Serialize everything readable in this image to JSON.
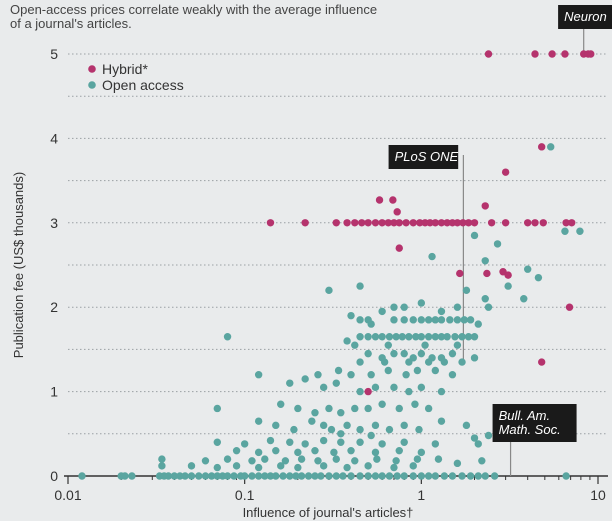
{
  "chart_data": {
    "type": "scatter",
    "title": "Open-access prices correlate weakly with the average influence of a journal's articles.",
    "xlabel": "Influence of journal's articles†",
    "ylabel": "Publication fee (US$ thousands)",
    "x_scale": "log",
    "xlim": [
      0.01,
      10
    ],
    "ylim": [
      0,
      5
    ],
    "x_ticks": [
      {
        "value": 0.01,
        "label": "0.01"
      },
      {
        "value": 0.1,
        "label": "0.1"
      },
      {
        "value": 1,
        "label": "1"
      },
      {
        "value": 10,
        "label": "10"
      }
    ],
    "y_ticks": [
      {
        "value": 0,
        "label": "0"
      },
      {
        "value": 1,
        "label": "1"
      },
      {
        "value": 2,
        "label": "2"
      },
      {
        "value": 3,
        "label": "3"
      },
      {
        "value": 4,
        "label": "4"
      },
      {
        "value": 5,
        "label": "5"
      }
    ],
    "grid": "dotted horizontal lines at every 0.5",
    "legend_position": "top-left",
    "series": [
      {
        "name": "Hybrid*",
        "color": "#b5336d",
        "points": [
          [
            2.4,
            5.0
          ],
          [
            4.4,
            5.0
          ],
          [
            5.5,
            5.0
          ],
          [
            6.5,
            5.0
          ],
          [
            8.3,
            5.0
          ],
          [
            8.8,
            5.0
          ],
          [
            9.1,
            5.0
          ],
          [
            4.8,
            3.9
          ],
          [
            3.0,
            3.6
          ],
          [
            0.14,
            3.0
          ],
          [
            0.22,
            3.0
          ],
          [
            0.33,
            3.0
          ],
          [
            0.38,
            3.0
          ],
          [
            0.42,
            3.0
          ],
          [
            0.46,
            3.0
          ],
          [
            0.5,
            3.0
          ],
          [
            0.55,
            3.0
          ],
          [
            0.6,
            3.0
          ],
          [
            0.65,
            3.0
          ],
          [
            0.7,
            3.0
          ],
          [
            0.75,
            3.0
          ],
          [
            0.82,
            3.0
          ],
          [
            0.9,
            3.0
          ],
          [
            0.98,
            3.0
          ],
          [
            1.05,
            3.0
          ],
          [
            1.12,
            3.0
          ],
          [
            1.2,
            3.0
          ],
          [
            1.3,
            3.0
          ],
          [
            1.4,
            3.0
          ],
          [
            1.5,
            3.0
          ],
          [
            1.6,
            3.0
          ],
          [
            1.72,
            3.0
          ],
          [
            1.85,
            3.0
          ],
          [
            2.0,
            3.0
          ],
          [
            2.5,
            3.0
          ],
          [
            3.0,
            3.0
          ],
          [
            4.0,
            3.0
          ],
          [
            4.4,
            3.0
          ],
          [
            4.9,
            3.0
          ],
          [
            6.6,
            3.0
          ],
          [
            7.1,
            3.0
          ],
          [
            0.58,
            3.27
          ],
          [
            0.69,
            3.27
          ],
          [
            0.73,
            3.13
          ],
          [
            2.3,
            3.2
          ],
          [
            0.75,
            2.7
          ],
          [
            1.65,
            2.4
          ],
          [
            2.35,
            2.4
          ],
          [
            2.9,
            2.42
          ],
          [
            3.1,
            2.38
          ],
          [
            6.9,
            2.0
          ],
          [
            4.8,
            1.35
          ],
          [
            0.5,
            1.0
          ]
        ]
      },
      {
        "name": "Open access",
        "color": "#5aa5a0",
        "points": [
          [
            5.4,
            3.9
          ],
          [
            6.5,
            2.9
          ],
          [
            7.9,
            2.9
          ],
          [
            2.0,
            2.85
          ],
          [
            2.7,
            2.75
          ],
          [
            2.3,
            2.55
          ],
          [
            1.15,
            2.6
          ],
          [
            4.0,
            2.45
          ],
          [
            4.6,
            2.35
          ],
          [
            3.1,
            2.25
          ],
          [
            1.8,
            2.2
          ],
          [
            2.3,
            2.1
          ],
          [
            3.8,
            2.1
          ],
          [
            0.3,
            2.2
          ],
          [
            0.45,
            2.25
          ],
          [
            0.8,
            2.0
          ],
          [
            1.0,
            2.05
          ],
          [
            1.3,
            1.95
          ],
          [
            1.6,
            2.0
          ],
          [
            2.4,
            2.0
          ],
          [
            0.6,
            1.95
          ],
          [
            0.7,
            2.0
          ],
          [
            0.4,
            1.9
          ],
          [
            0.45,
            1.85
          ],
          [
            0.5,
            1.85
          ],
          [
            0.52,
            1.8
          ],
          [
            0.7,
            1.85
          ],
          [
            0.8,
            1.85
          ],
          [
            0.9,
            1.85
          ],
          [
            1.0,
            1.85
          ],
          [
            1.1,
            1.85
          ],
          [
            1.2,
            1.85
          ],
          [
            1.3,
            1.85
          ],
          [
            1.45,
            1.85
          ],
          [
            1.6,
            1.85
          ],
          [
            1.75,
            1.85
          ],
          [
            1.9,
            1.85
          ],
          [
            2.1,
            1.8
          ],
          [
            0.45,
            1.65
          ],
          [
            0.5,
            1.65
          ],
          [
            0.55,
            1.65
          ],
          [
            0.6,
            1.65
          ],
          [
            0.66,
            1.65
          ],
          [
            0.72,
            1.65
          ],
          [
            0.78,
            1.65
          ],
          [
            0.85,
            1.65
          ],
          [
            0.93,
            1.65
          ],
          [
            1.0,
            1.65
          ],
          [
            1.1,
            1.65
          ],
          [
            1.2,
            1.65
          ],
          [
            1.3,
            1.65
          ],
          [
            1.4,
            1.65
          ],
          [
            1.55,
            1.65
          ],
          [
            1.7,
            1.65
          ],
          [
            1.85,
            1.65
          ],
          [
            2.0,
            1.65
          ],
          [
            0.38,
            1.6
          ],
          [
            0.42,
            1.55
          ],
          [
            0.08,
            1.65
          ],
          [
            0.65,
            1.55
          ],
          [
            1.05,
            1.55
          ],
          [
            1.6,
            1.55
          ],
          [
            0.5,
            1.45
          ],
          [
            0.6,
            1.4
          ],
          [
            0.7,
            1.45
          ],
          [
            0.8,
            1.45
          ],
          [
            0.9,
            1.4
          ],
          [
            1.0,
            1.45
          ],
          [
            1.15,
            1.4
          ],
          [
            1.3,
            1.4
          ],
          [
            1.5,
            1.45
          ],
          [
            0.45,
            1.35
          ],
          [
            0.62,
            1.35
          ],
          [
            0.85,
            1.35
          ],
          [
            1.1,
            1.35
          ],
          [
            1.35,
            1.35
          ],
          [
            1.7,
            1.35
          ],
          [
            2.0,
            1.4
          ],
          [
            0.26,
            1.2
          ],
          [
            0.34,
            1.25
          ],
          [
            0.4,
            1.2
          ],
          [
            0.52,
            1.2
          ],
          [
            0.65,
            1.25
          ],
          [
            0.82,
            1.2
          ],
          [
            0.95,
            1.25
          ],
          [
            1.2,
            1.25
          ],
          [
            1.5,
            1.2
          ],
          [
            0.12,
            1.2
          ],
          [
            0.18,
            1.1
          ],
          [
            0.22,
            1.15
          ],
          [
            0.28,
            1.05
          ],
          [
            0.33,
            1.1
          ],
          [
            0.45,
            1.0
          ],
          [
            0.55,
            1.05
          ],
          [
            0.7,
            1.05
          ],
          [
            0.85,
            1.0
          ],
          [
            1.0,
            1.05
          ],
          [
            1.3,
            1.0
          ],
          [
            0.07,
            0.8
          ],
          [
            0.16,
            0.85
          ],
          [
            0.2,
            0.8
          ],
          [
            0.25,
            0.75
          ],
          [
            0.3,
            0.8
          ],
          [
            0.35,
            0.75
          ],
          [
            0.42,
            0.8
          ],
          [
            0.5,
            0.8
          ],
          [
            0.6,
            0.85
          ],
          [
            0.75,
            0.8
          ],
          [
            0.92,
            0.85
          ],
          [
            1.1,
            0.8
          ],
          [
            0.12,
            0.65
          ],
          [
            0.15,
            0.6
          ],
          [
            0.19,
            0.55
          ],
          [
            0.24,
            0.65
          ],
          [
            0.28,
            0.6
          ],
          [
            0.31,
            0.55
          ],
          [
            0.38,
            0.6
          ],
          [
            0.45,
            0.55
          ],
          [
            0.55,
            0.6
          ],
          [
            0.66,
            0.55
          ],
          [
            0.8,
            0.6
          ],
          [
            0.97,
            0.55
          ],
          [
            1.3,
            0.65
          ],
          [
            1.8,
            0.6
          ],
          [
            0.35,
            0.5
          ],
          [
            0.52,
            0.48
          ],
          [
            2.0,
            0.45
          ],
          [
            2.4,
            0.48
          ],
          [
            0.07,
            0.4
          ],
          [
            0.1,
            0.38
          ],
          [
            0.14,
            0.42
          ],
          [
            0.18,
            0.4
          ],
          [
            0.22,
            0.38
          ],
          [
            0.28,
            0.42
          ],
          [
            0.35,
            0.4
          ],
          [
            0.45,
            0.4
          ],
          [
            0.6,
            0.38
          ],
          [
            0.8,
            0.4
          ],
          [
            1.2,
            0.38
          ],
          [
            2.1,
            0.38
          ],
          [
            0.09,
            0.3
          ],
          [
            0.12,
            0.28
          ],
          [
            0.15,
            0.3
          ],
          [
            0.2,
            0.28
          ],
          [
            0.25,
            0.3
          ],
          [
            0.32,
            0.28
          ],
          [
            0.4,
            0.3
          ],
          [
            0.55,
            0.28
          ],
          [
            0.75,
            0.3
          ],
          [
            1.0,
            0.28
          ],
          [
            0.06,
            0.18
          ],
          [
            0.08,
            0.2
          ],
          [
            0.11,
            0.18
          ],
          [
            0.13,
            0.2
          ],
          [
            0.17,
            0.18
          ],
          [
            0.21,
            0.2
          ],
          [
            0.26,
            0.18
          ],
          [
            0.33,
            0.2
          ],
          [
            0.42,
            0.18
          ],
          [
            0.56,
            0.2
          ],
          [
            0.72,
            0.18
          ],
          [
            0.95,
            0.2
          ],
          [
            1.25,
            0.2
          ],
          [
            1.6,
            0.15
          ],
          [
            2.2,
            0.18
          ],
          [
            0.034,
            0.2
          ],
          [
            0.034,
            0.12
          ],
          [
            0.05,
            0.12
          ],
          [
            0.07,
            0.1
          ],
          [
            0.09,
            0.12
          ],
          [
            0.12,
            0.1
          ],
          [
            0.16,
            0.12
          ],
          [
            0.2,
            0.1
          ],
          [
            0.28,
            0.12
          ],
          [
            0.38,
            0.1
          ],
          [
            0.5,
            0.12
          ],
          [
            0.7,
            0.1
          ],
          [
            0.9,
            0.12
          ],
          [
            0.012,
            0.0
          ],
          [
            0.02,
            0.0
          ],
          [
            0.021,
            0.0
          ],
          [
            0.023,
            0.0
          ],
          [
            0.033,
            0.0
          ],
          [
            0.035,
            0.0
          ],
          [
            0.037,
            0.0
          ],
          [
            0.04,
            0.0
          ],
          [
            0.043,
            0.0
          ],
          [
            0.046,
            0.0
          ],
          [
            0.05,
            0.0
          ],
          [
            0.055,
            0.0
          ],
          [
            0.06,
            0.0
          ],
          [
            0.065,
            0.0
          ],
          [
            0.07,
            0.0
          ],
          [
            0.075,
            0.0
          ],
          [
            0.08,
            0.0
          ],
          [
            0.087,
            0.0
          ],
          [
            0.095,
            0.0
          ],
          [
            0.1,
            0.0
          ],
          [
            0.11,
            0.0
          ],
          [
            0.12,
            0.0
          ],
          [
            0.13,
            0.0
          ],
          [
            0.14,
            0.0
          ],
          [
            0.15,
            0.0
          ],
          [
            0.165,
            0.0
          ],
          [
            0.18,
            0.0
          ],
          [
            0.195,
            0.0
          ],
          [
            0.21,
            0.0
          ],
          [
            0.23,
            0.0
          ],
          [
            0.25,
            0.0
          ],
          [
            0.27,
            0.0
          ],
          [
            0.3,
            0.0
          ],
          [
            0.33,
            0.0
          ],
          [
            0.36,
            0.0
          ],
          [
            0.4,
            0.0
          ],
          [
            0.45,
            0.0
          ],
          [
            0.5,
            0.0
          ],
          [
            0.55,
            0.0
          ],
          [
            0.6,
            0.0
          ],
          [
            0.66,
            0.0
          ],
          [
            0.73,
            0.0
          ],
          [
            0.8,
            0.0
          ],
          [
            0.9,
            0.0
          ],
          [
            1.0,
            0.0
          ],
          [
            1.1,
            0.0
          ],
          [
            1.2,
            0.0
          ],
          [
            1.35,
            0.0
          ],
          [
            1.5,
            0.0
          ],
          [
            1.7,
            0.0
          ],
          [
            1.9,
            0.0
          ],
          [
            2.1,
            0.0
          ],
          [
            2.3,
            0.0
          ],
          [
            2.6,
            0.0
          ],
          [
            6.6,
            0.0
          ]
        ]
      }
    ],
    "annotations": [
      {
        "label": "Neuron",
        "x": 8.3,
        "y": 5.0,
        "style": "dark-box"
      },
      {
        "label": "PLoS ONE",
        "x": 1.73,
        "y": 1.35,
        "style": "dark-box"
      },
      {
        "label": "Bull. Am. Math. Soc.",
        "x": 3.2,
        "y": 0.0,
        "style": "dark-box"
      }
    ]
  }
}
